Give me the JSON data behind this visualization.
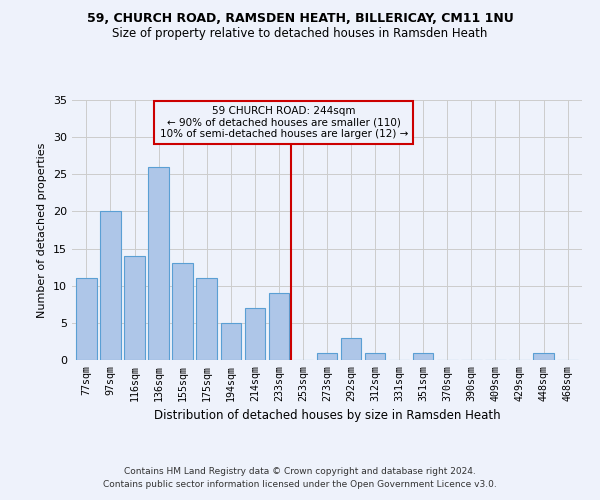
{
  "title1": "59, CHURCH ROAD, RAMSDEN HEATH, BILLERICAY, CM11 1NU",
  "title2": "Size of property relative to detached houses in Ramsden Heath",
  "xlabel": "Distribution of detached houses by size in Ramsden Heath",
  "ylabel": "Number of detached properties",
  "bar_labels": [
    "77sqm",
    "97sqm",
    "116sqm",
    "136sqm",
    "155sqm",
    "175sqm",
    "194sqm",
    "214sqm",
    "233sqm",
    "253sqm",
    "273sqm",
    "292sqm",
    "312sqm",
    "331sqm",
    "351sqm",
    "370sqm",
    "390sqm",
    "409sqm",
    "429sqm",
    "448sqm",
    "468sqm"
  ],
  "bar_values": [
    11,
    20,
    14,
    26,
    13,
    11,
    5,
    7,
    9,
    0,
    1,
    3,
    1,
    0,
    1,
    0,
    0,
    0,
    0,
    1,
    0
  ],
  "bar_color": "#aec6e8",
  "bar_edge_color": "#5a9fd4",
  "vline_x": 8.5,
  "vline_color": "#cc0000",
  "annotation_text": "59 CHURCH ROAD: 244sqm\n← 90% of detached houses are smaller (110)\n10% of semi-detached houses are larger (12) →",
  "annotation_box_color": "#cc0000",
  "ylim": [
    0,
    35
  ],
  "yticks": [
    0,
    5,
    10,
    15,
    20,
    25,
    30,
    35
  ],
  "footer1": "Contains HM Land Registry data © Crown copyright and database right 2024.",
  "footer2": "Contains public sector information licensed under the Open Government Licence v3.0.",
  "bg_color": "#eef2fb"
}
